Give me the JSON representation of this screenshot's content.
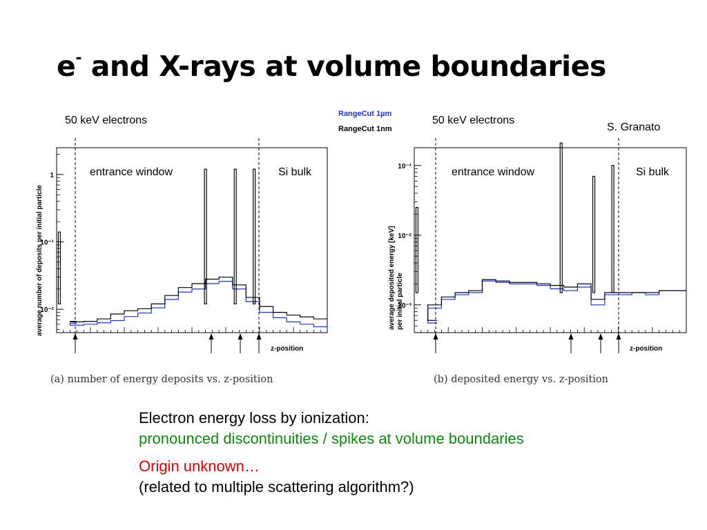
{
  "slide": {
    "title_main": "e",
    "title_sup": "-",
    "title_rest": " and X-rays at volume boundaries"
  },
  "labels": {
    "left_energy": "50 keV electrons",
    "right_energy": "50 keV electrons",
    "author": "S. Granato",
    "legend_1um": "RangeCut 1µm",
    "legend_1nm": "RangeCut 1nm",
    "region_window": "entrance window",
    "region_bulk": "Si bulk",
    "caption_a": "(a)  number of energy deposits vs.  z-position",
    "caption_b": "(b)  deposited energy vs.  z-position"
  },
  "text": {
    "line1": "Electron energy loss by ionization:",
    "line2": "pronounced discontinuities / spikes at volume boundaries",
    "line3": "Origin unknown…",
    "line4": "(related to multiple scattering algorithm?)"
  },
  "colors": {
    "series_1um": "#1f2fd8",
    "series_1nm": "#000000",
    "green_text": "#0a8a0a",
    "red_text": "#e00000"
  },
  "chart_data": [
    {
      "type": "line",
      "ylabel": "average number of deposits per initial particle",
      "xlabel": "z-position",
      "yscale": "log",
      "ylim": [
        0.0045,
        2.5
      ],
      "yticks": [
        {
          "v": 1,
          "label": "1"
        },
        {
          "v": 0.1,
          "label": "10⁻¹"
        },
        {
          "v": 0.01,
          "label": "10⁻²"
        }
      ],
      "regions": [
        "entrance window",
        "Si bulk"
      ],
      "x": [
        0.0,
        0.05,
        0.1,
        0.15,
        0.2,
        0.25,
        0.3,
        0.35,
        0.4,
        0.45,
        0.5,
        0.55,
        0.6,
        0.65,
        0.7,
        0.75,
        0.8,
        0.85,
        0.9,
        0.95,
        1.0
      ],
      "series": [
        {
          "name": "RangeCut 1µm",
          "values": [
            0.0062,
            0.0058,
            0.006,
            0.0063,
            0.0068,
            0.0078,
            0.0088,
            0.0105,
            0.014,
            0.018,
            0.02,
            0.024,
            0.026,
            0.02,
            0.013,
            0.009,
            0.0075,
            0.0065,
            0.006,
            0.0055,
            0.0048
          ]
        },
        {
          "name": "RangeCut 1nm",
          "values": [
            0.0066,
            0.0065,
            0.0066,
            0.0072,
            0.0085,
            0.0095,
            0.0102,
            0.012,
            0.016,
            0.021,
            0.024,
            0.028,
            0.03,
            0.023,
            0.015,
            0.011,
            0.009,
            0.0082,
            0.0077,
            0.0072,
            0.0072
          ]
        }
      ],
      "spikes": [
        {
          "x": 0.01,
          "value": 0.14
        },
        {
          "x": 0.55,
          "value": 1.2
        },
        {
          "x": 0.66,
          "value": 1.2
        },
        {
          "x": 0.73,
          "value": 1.2
        }
      ]
    },
    {
      "type": "line",
      "ylabel": "average deposited energy [keV] per initial particle",
      "xlabel": "z-position",
      "yscale": "log",
      "ylim": [
        0.0004,
        0.18
      ],
      "yticks": [
        {
          "v": 0.1,
          "label": "10⁻¹"
        },
        {
          "v": 0.01,
          "label": "10⁻²"
        },
        {
          "v": 0.001,
          "label": "10⁻³"
        }
      ],
      "regions": [
        "entrance window",
        "Si bulk"
      ],
      "x": [
        0.0,
        0.05,
        0.1,
        0.15,
        0.2,
        0.25,
        0.3,
        0.35,
        0.4,
        0.45,
        0.5,
        0.55,
        0.6,
        0.65,
        0.7,
        0.75,
        0.8,
        0.85,
        0.9,
        0.95,
        1.0
      ],
      "series": [
        {
          "name": "RangeCut 1µm",
          "values": [
            0.00055,
            0.0009,
            0.0012,
            0.0014,
            0.0015,
            0.0022,
            0.0021,
            0.002,
            0.002,
            0.0019,
            0.0017,
            0.0016,
            0.0018,
            0.001,
            0.0014,
            0.0014,
            0.0015,
            0.0014,
            0.0016,
            0.0016,
            0.0017
          ]
        },
        {
          "name": "RangeCut 1nm",
          "values": [
            0.0006,
            0.001,
            0.0013,
            0.0015,
            0.0016,
            0.0023,
            0.0022,
            0.0021,
            0.0021,
            0.002,
            0.0019,
            0.0018,
            0.002,
            0.0012,
            0.0015,
            0.0015,
            0.0015,
            0.0015,
            0.0016,
            0.0016,
            0.0016
          ]
        }
      ],
      "spikes": [
        {
          "x": 0.01,
          "value": 0.025
        },
        {
          "x": 0.54,
          "value": 0.21
        },
        {
          "x": 0.66,
          "value": 0.07
        },
        {
          "x": 0.73,
          "value": 0.1
        }
      ]
    }
  ]
}
